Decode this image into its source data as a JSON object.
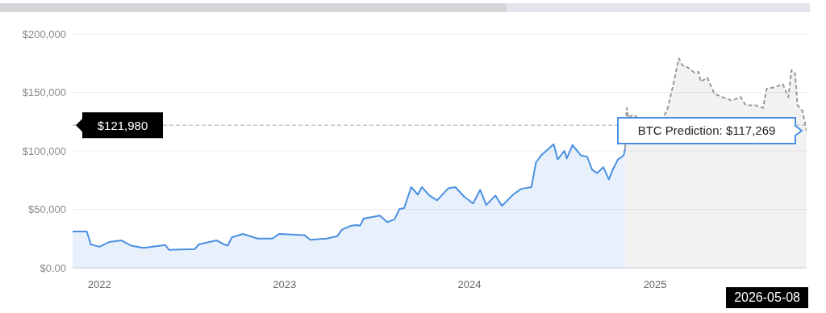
{
  "chart_data": {
    "type": "area",
    "grid": "y",
    "xlim": [
      "2021-11-09",
      "2025-10-27"
    ],
    "xticks": [
      {
        "value": "2022-01-01",
        "label": "2022"
      },
      {
        "value": "2023-01-01",
        "label": "2023"
      },
      {
        "value": "2024-01-01",
        "label": "2024"
      },
      {
        "value": "2025-01-01",
        "label": "2025"
      }
    ],
    "ylim": [
      0,
      200000
    ],
    "yticks": [
      {
        "value": 0,
        "label": "$0.00"
      },
      {
        "value": 50000,
        "label": "$50,000"
      },
      {
        "value": 100000,
        "label": "$100,000"
      },
      {
        "value": 150000,
        "label": "$150,000"
      },
      {
        "value": 200000,
        "label": "$200,000"
      }
    ],
    "series": [
      {
        "color": "#4a90e2",
        "line_style": "solid",
        "x": [
          "2021-11-09",
          "2021-12-07",
          "2021-12-15",
          "2022-01-01",
          "2022-01-20",
          "2022-02-13",
          "2022-03-04",
          "2022-03-29",
          "2022-05-11",
          "2022-05-18",
          "2022-07-08",
          "2022-07-16",
          "2022-08-20",
          "2022-09-04",
          "2022-09-11",
          "2022-09-19",
          "2022-10-11",
          "2022-11-09",
          "2022-12-08",
          "2022-12-22",
          "2023-02-09",
          "2023-02-21",
          "2023-03-25",
          "2023-04-15",
          "2023-04-24",
          "2023-05-11",
          "2023-05-23",
          "2023-05-30",
          "2023-06-06",
          "2023-07-08",
          "2023-07-23",
          "2023-08-06",
          "2023-08-16",
          "2023-08-25",
          "2023-09-08",
          "2023-09-21",
          "2023-09-29",
          "2023-10-14",
          "2023-10-29",
          "2023-11-20",
          "2023-12-04",
          "2023-12-21",
          "2024-01-08",
          "2024-01-22",
          "2024-02-03",
          "2024-02-21",
          "2024-03-05",
          "2024-03-27",
          "2024-04-12",
          "2024-05-02",
          "2024-05-11",
          "2024-05-21",
          "2024-06-15",
          "2024-06-23",
          "2024-07-06",
          "2024-07-11",
          "2024-07-22",
          "2024-08-08",
          "2024-08-20",
          "2024-08-30",
          "2024-09-09",
          "2024-09-21",
          "2024-10-02",
          "2024-10-10",
          "2024-10-20",
          "2024-10-31",
          "2024-11-03"
        ],
        "values": [
          31000,
          31000,
          20000,
          18000,
          22000,
          23500,
          19000,
          17000,
          19500,
          15400,
          16000,
          20000,
          23500,
          20000,
          19000,
          26000,
          29000,
          25000,
          25000,
          29000,
          28000,
          24000,
          25000,
          27000,
          32500,
          35800,
          36600,
          36000,
          42000,
          44700,
          39000,
          41500,
          50400,
          51000,
          69000,
          62600,
          69000,
          61800,
          57700,
          68000,
          69000,
          61000,
          55000,
          66700,
          53700,
          61800,
          53000,
          62600,
          67500,
          69000,
          90000,
          96000,
          105700,
          92700,
          100000,
          93500,
          105000,
          96000,
          95000,
          83700,
          81000,
          86000,
          75600,
          84500,
          92700,
          96000,
          102000
        ]
      },
      {
        "color": "#999999",
        "line_style": "dashed",
        "x": [
          "2024-11-03",
          "2024-11-06",
          "2024-11-10",
          "2024-11-18",
          "2024-11-22",
          "2024-11-29",
          "2024-12-16",
          "2025-01-17",
          "2025-01-26",
          "2025-02-05",
          "2025-02-17",
          "2025-02-24",
          "2025-03-06",
          "2025-03-20",
          "2025-03-28",
          "2025-04-01",
          "2025-04-14",
          "2025-04-28",
          "2025-05-13",
          "2025-06-01",
          "2025-06-19",
          "2025-06-29",
          "2025-07-18",
          "2025-08-02",
          "2025-08-09",
          "2025-08-26",
          "2025-09-10",
          "2025-09-21",
          "2025-09-27",
          "2025-10-04",
          "2025-10-09",
          "2025-10-19",
          "2025-10-27"
        ],
        "values": [
          102000,
          136600,
          128000,
          131000,
          130000,
          128000,
          128000,
          128000,
          136600,
          155000,
          179000,
          173000,
          171500,
          166700,
          167500,
          159000,
          162600,
          148800,
          146000,
          143000,
          146000,
          139000,
          139000,
          136600,
          153000,
          154500,
          157000,
          146000,
          169000,
          166700,
          139000,
          134000,
          117000
        ]
      }
    ],
    "ref_lines": [
      {
        "axis": "y",
        "value": 121980,
        "label": "$121,980",
        "color": "#aaaaaa",
        "line_style": "dashed"
      }
    ],
    "annotations": [
      {
        "text": "BTC Prediction: $117,269",
        "x": "2025-10-27",
        "y": 117269
      },
      "2026-05-08"
    ]
  }
}
